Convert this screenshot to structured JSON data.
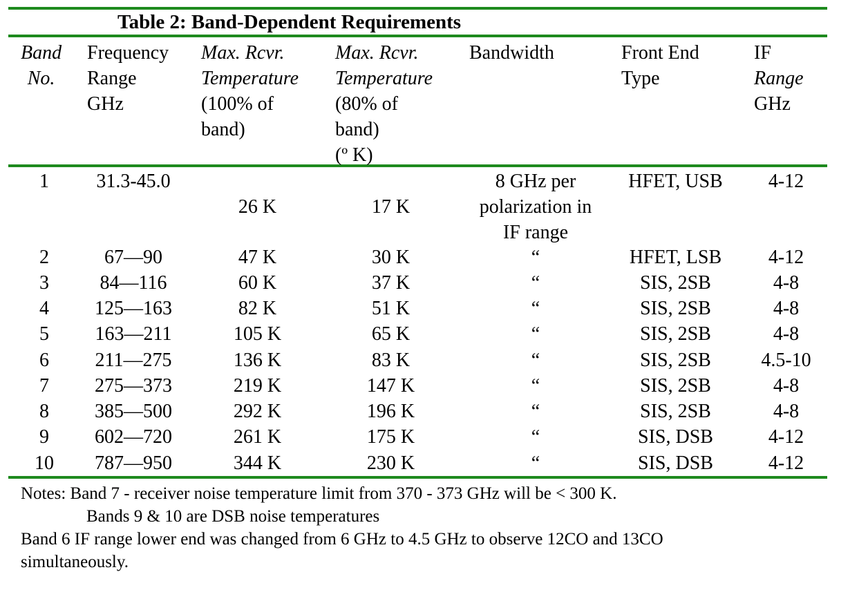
{
  "table": {
    "title": "Table 2:  Band-Dependent Requirements",
    "headers": {
      "band_no": [
        "Band",
        "No."
      ],
      "freq": [
        "Frequency",
        "Range",
        "GHz"
      ],
      "max100": [
        "Max. Rcvr.",
        "Temperature",
        "(100% of",
        "band)"
      ],
      "max80": [
        "Max. Rcvr.",
        "Temperature",
        "(80% of",
        "band)",
        "(º K)"
      ],
      "bandwidth": [
        "Bandwidth"
      ],
      "frontend": [
        "Front End",
        "Type"
      ],
      "if": [
        "IF",
        "Range",
        "GHz"
      ]
    },
    "row1": {
      "band": "1",
      "freq": "31.3-45.0",
      "t100": "26 K",
      "t80": "17 K",
      "bw": [
        "8 GHz per",
        "polarization in",
        "IF range"
      ],
      "fe": "HFET, USB",
      "if": "4-12"
    },
    "rows": [
      {
        "band": "2",
        "freq": "67—90",
        "t100": "47 K",
        "t80": "30 K",
        "bw": "“",
        "fe": "HFET, LSB",
        "if": "4-12"
      },
      {
        "band": "3",
        "freq": "84—116",
        "t100": "60 K",
        "t80": "37 K",
        "bw": "“",
        "fe": "SIS, 2SB",
        "if": "4-8"
      },
      {
        "band": "4",
        "freq": "125—163",
        "t100": "82 K",
        "t80": "51 K",
        "bw": "“",
        "fe": "SIS, 2SB",
        "if": "4-8"
      },
      {
        "band": "5",
        "freq": "163—211",
        "t100": "105 K",
        "t80": "65 K",
        "bw": "“",
        "fe": "SIS, 2SB",
        "if": "4-8"
      },
      {
        "band": "6",
        "freq": "211—275",
        "t100": "136 K",
        "t80": "83 K",
        "bw": "“",
        "fe": "SIS, 2SB",
        "if": "4.5-10"
      },
      {
        "band": "7",
        "freq": "275—373",
        "t100": "219 K",
        "t80": "147 K",
        "bw": "“",
        "fe": "SIS, 2SB",
        "if": "4-8"
      },
      {
        "band": "8",
        "freq": "385—500",
        "t100": "292 K",
        "t80": "196 K",
        "bw": "“",
        "fe": "SIS, 2SB",
        "if": "4-8"
      },
      {
        "band": "9",
        "freq": "602—720",
        "t100": "261 K",
        "t80": "175 K",
        "bw": "“",
        "fe": "SIS, DSB",
        "if": "4-12"
      },
      {
        "band": "10",
        "freq": "787—950",
        "t100": "344 K",
        "t80": "230 K",
        "bw": "“",
        "fe": "SIS, DSB",
        "if": "4-12"
      }
    ],
    "notes": [
      "Notes:  Band 7 - receiver noise temperature limit from 370 - 373 GHz will be < 300 K.",
      "Bands 9 & 10 are DSB noise temperatures",
      "Band 6 IF range lower end was changed from 6 GHz to 4.5 GHz to observe 12CO and 13CO",
      "simultaneously."
    ],
    "rule_color": "#1e8a1e"
  }
}
